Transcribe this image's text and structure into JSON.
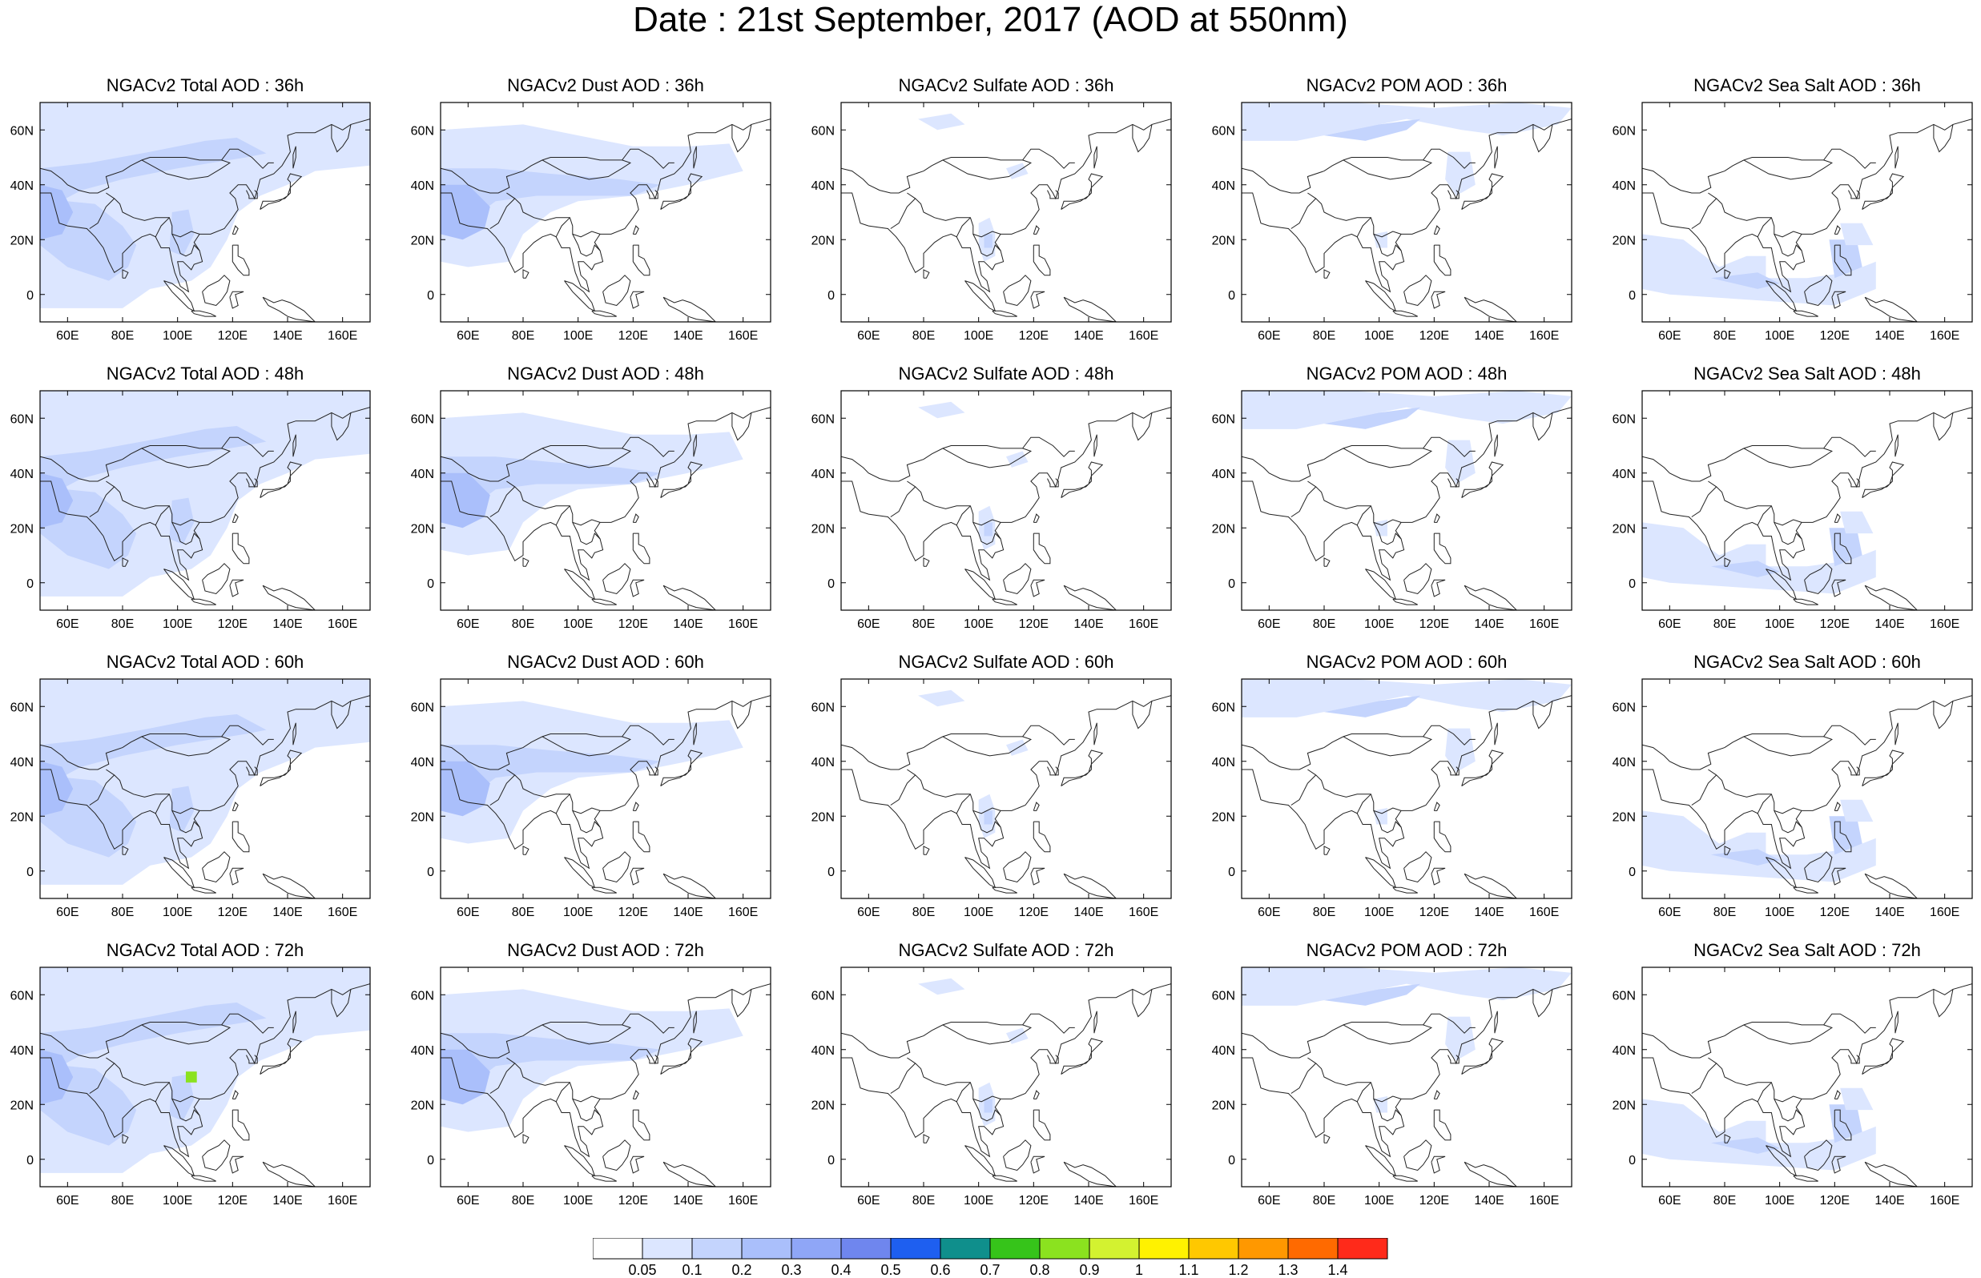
{
  "title": "Date : 21st September, 2017 (AOD at 550nm)",
  "lon_ticks": [
    "60E",
    "80E",
    "100E",
    "120E",
    "140E",
    "160E"
  ],
  "lat_ticks": [
    "60N",
    "40N",
    "20N",
    "0"
  ],
  "colorbar": {
    "labels": [
      "0.05",
      "0.1",
      "0.2",
      "0.3",
      "0.4",
      "0.5",
      "0.6",
      "0.7",
      "0.8",
      "0.9",
      "1",
      "1.1",
      "1.2",
      "1.3",
      "1.4"
    ],
    "colors": [
      "#ffffff",
      "#dce6ff",
      "#c4d4fd",
      "#aabffb",
      "#8fa6f7",
      "#6f86ee",
      "#1e5ff0",
      "#0f8f8c",
      "#36c41a",
      "#8be21f",
      "#d3f230",
      "#fff200",
      "#ffc800",
      "#ff9800",
      "#ff6a00",
      "#ff2a1a"
    ]
  },
  "colors": {
    "land_outline": "#222222",
    "frame": "#000000",
    "shade_light": "#dce6ff",
    "shade_mid": "#c4d4fd",
    "shade_dark": "#aabffb",
    "shade_darker": "#8fa6f7",
    "hotspot": "#8be21f"
  },
  "panels": [
    {
      "title": "NGACv2 Total AOD : 36h",
      "species": "total",
      "hour": 36
    },
    {
      "title": "NGACv2 Dust AOD : 36h",
      "species": "dust",
      "hour": 36
    },
    {
      "title": "NGACv2 Sulfate AOD : 36h",
      "species": "sulfate",
      "hour": 36
    },
    {
      "title": "NGACv2 POM AOD : 36h",
      "species": "pom",
      "hour": 36
    },
    {
      "title": "NGACv2 Sea Salt AOD : 36h",
      "species": "seasalt",
      "hour": 36
    },
    {
      "title": "NGACv2 Total AOD : 48h",
      "species": "total",
      "hour": 48
    },
    {
      "title": "NGACv2 Dust AOD : 48h",
      "species": "dust",
      "hour": 48
    },
    {
      "title": "NGACv2 Sulfate AOD : 48h",
      "species": "sulfate",
      "hour": 48
    },
    {
      "title": "NGACv2 POM AOD : 48h",
      "species": "pom",
      "hour": 48
    },
    {
      "title": "NGACv2 Sea Salt AOD : 48h",
      "species": "seasalt",
      "hour": 48
    },
    {
      "title": "NGACv2 Total AOD : 60h",
      "species": "total",
      "hour": 60
    },
    {
      "title": "NGACv2 Dust AOD : 60h",
      "species": "dust",
      "hour": 60
    },
    {
      "title": "NGACv2 Sulfate AOD : 60h",
      "species": "sulfate",
      "hour": 60
    },
    {
      "title": "NGACv2 POM AOD : 60h",
      "species": "pom",
      "hour": 60
    },
    {
      "title": "NGACv2 Sea Salt AOD : 60h",
      "species": "seasalt",
      "hour": 60
    },
    {
      "title": "NGACv2 Total AOD : 72h",
      "species": "total",
      "hour": 72
    },
    {
      "title": "NGACv2 Dust AOD : 72h",
      "species": "dust",
      "hour": 72
    },
    {
      "title": "NGACv2 Sulfate AOD : 72h",
      "species": "sulfate",
      "hour": 72
    },
    {
      "title": "NGACv2 POM AOD : 72h",
      "species": "pom",
      "hour": 72
    },
    {
      "title": "NGACv2 Sea Salt  AOD : 72h",
      "species": "seasalt",
      "hour": 72
    }
  ]
}
